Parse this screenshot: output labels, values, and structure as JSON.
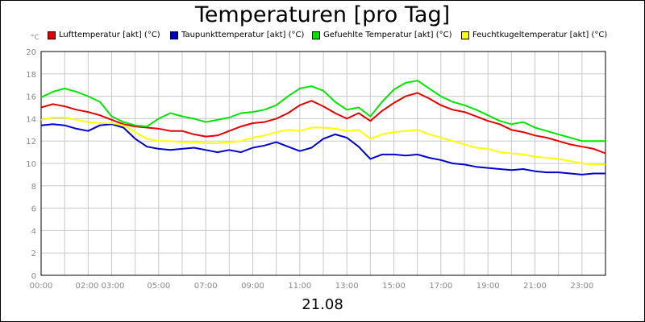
{
  "title": "Temperaturen [pro Tag]",
  "unit_label": "°C",
  "date_label": "21.08",
  "chart_data": {
    "type": "line",
    "title": "Temperaturen [pro Tag]",
    "ylim": [
      0,
      20
    ],
    "ytick_labels": [
      "0",
      "2",
      "4",
      "6",
      "8",
      "10",
      "12",
      "14",
      "16",
      "18",
      "20"
    ],
    "xlim": [
      0,
      24
    ],
    "xtick_labels": [
      "00:00",
      "02:00 03:00",
      "05:00",
      "07:00",
      "09:00",
      "11:00",
      "13:00",
      "15:00",
      "17:00",
      "19:00",
      "21:00",
      "23:00"
    ],
    "grid": true,
    "legend_position": "top",
    "x": [
      0,
      0.5,
      1,
      1.5,
      2,
      2.5,
      3,
      3.5,
      4,
      4.5,
      5,
      5.5,
      6,
      6.5,
      7,
      7.5,
      8,
      8.5,
      9,
      9.5,
      10,
      10.5,
      11,
      11.5,
      12,
      12.5,
      13,
      13.5,
      14,
      14.5,
      15,
      15.5,
      16,
      16.5,
      17,
      17.5,
      18,
      18.5,
      19,
      19.5,
      20,
      20.5,
      21,
      21.5,
      22,
      22.5,
      23,
      23.5,
      24
    ],
    "series": [
      {
        "name": "Lufttemperatur [akt] (°C)",
        "color": "#e60000",
        "values": [
          15.0,
          15.3,
          15.1,
          14.8,
          14.6,
          14.3,
          13.9,
          13.5,
          13.3,
          13.2,
          13.1,
          12.9,
          12.9,
          12.6,
          12.4,
          12.5,
          12.9,
          13.3,
          13.6,
          13.7,
          14.0,
          14.5,
          15.2,
          15.6,
          15.1,
          14.5,
          14.0,
          14.5,
          13.8,
          14.7,
          15.4,
          16.0,
          16.3,
          15.8,
          15.2,
          14.8,
          14.6,
          14.2,
          13.8,
          13.5,
          13.0,
          12.8,
          12.5,
          12.3,
          12.0,
          11.7,
          11.5,
          11.3,
          10.9
        ]
      },
      {
        "name": "Taupunkttemperatur [akt] (°C)",
        "color": "#0000cc",
        "values": [
          13.4,
          13.5,
          13.4,
          13.1,
          12.9,
          13.4,
          13.5,
          13.2,
          12.2,
          11.5,
          11.3,
          11.2,
          11.3,
          11.4,
          11.2,
          11.0,
          11.2,
          11.0,
          11.4,
          11.6,
          11.9,
          11.5,
          11.1,
          11.4,
          12.2,
          12.6,
          12.3,
          11.5,
          10.4,
          10.8,
          10.8,
          10.7,
          10.8,
          10.5,
          10.3,
          10.0,
          9.9,
          9.7,
          9.6,
          9.5,
          9.4,
          9.5,
          9.3,
          9.2,
          9.2,
          9.1,
          9.0,
          9.1,
          9.1
        ]
      },
      {
        "name": "Gefuehlte Temperatur [akt] (°C)",
        "color": "#00e600",
        "values": [
          15.9,
          16.4,
          16.7,
          16.4,
          16.0,
          15.5,
          14.2,
          13.7,
          13.4,
          13.3,
          14.0,
          14.5,
          14.2,
          14.0,
          13.7,
          13.9,
          14.1,
          14.5,
          14.6,
          14.8,
          15.2,
          16.0,
          16.7,
          16.9,
          16.5,
          15.5,
          14.8,
          15.0,
          14.2,
          15.5,
          16.6,
          17.2,
          17.4,
          16.7,
          16.0,
          15.5,
          15.2,
          14.8,
          14.3,
          13.8,
          13.5,
          13.7,
          13.2,
          12.9,
          12.6,
          12.3,
          12.0,
          12.0,
          12.0
        ]
      },
      {
        "name": "Feuchtkugeltemperatur [akt] (°C)",
        "color": "#ffff00",
        "values": [
          13.9,
          14.1,
          14.1,
          13.9,
          13.7,
          13.6,
          13.6,
          13.4,
          12.8,
          12.2,
          12.0,
          12.0,
          11.9,
          11.9,
          11.8,
          11.8,
          11.9,
          12.0,
          12.3,
          12.5,
          12.8,
          13.0,
          12.9,
          13.2,
          13.2,
          13.1,
          12.9,
          13.0,
          12.2,
          12.6,
          12.8,
          12.9,
          13.0,
          12.6,
          12.3,
          12.0,
          11.7,
          11.4,
          11.3,
          11.0,
          10.9,
          10.8,
          10.6,
          10.5,
          10.4,
          10.2,
          10.0,
          9.9,
          9.9
        ]
      }
    ]
  }
}
